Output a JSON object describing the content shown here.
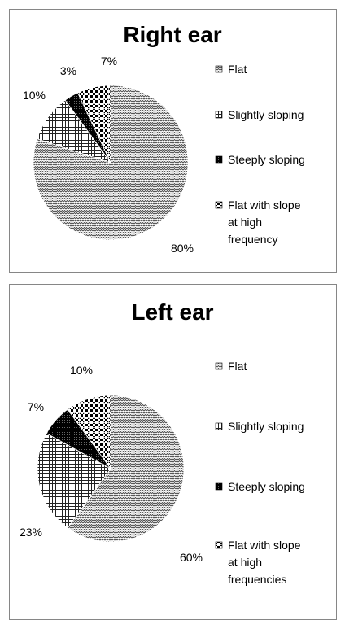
{
  "chart_data": [
    {
      "type": "pie",
      "title": "Right ear",
      "categories": [
        "Flat",
        "Slightly sloping",
        "Steeply sloping",
        "Flat with slope at high frequency"
      ],
      "values": [
        80,
        10,
        3,
        7
      ],
      "value_labels": [
        "80%",
        "10%",
        "3%",
        "7%"
      ],
      "legend": "right"
    },
    {
      "type": "pie",
      "title": "Left ear",
      "categories": [
        "Flat",
        "Slightly sloping",
        "Steeply sloping",
        "Flat with slope at high frequencies"
      ],
      "values": [
        60,
        23,
        7,
        10
      ],
      "value_labels": [
        "60%",
        "23%",
        "7%",
        "10%"
      ],
      "legend": "right"
    }
  ]
}
